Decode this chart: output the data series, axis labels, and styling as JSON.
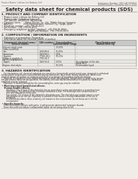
{
  "bg_color": "#f0ede8",
  "header_top_left": "Product Name: Lithium Ion Battery Cell",
  "header_top_right_l1": "Substance Number: SDS-LIB-000010",
  "header_top_right_l2": "Establishment / Revision: Dec.1 2010",
  "main_title": "Safety data sheet for chemical products (SDS)",
  "section1_title": "1. PRODUCT AND COMPANY IDENTIFICATION",
  "section1_lines": [
    " • Product name: Lithium Ion Battery Cell",
    " • Product code: Cylindrical-type cell",
    "    (UR 18650U, UR18650S, UR18650A)",
    " • Company name:      Sanyo Electric Co., Ltd., Mobile Energy Company",
    " • Address:               2001 Kamikamachi, Sumoto-City, Hyogo, Japan",
    " • Telephone number:  +81-799-26-4111",
    " • Fax number:  +81-799-26-4121",
    " • Emergency telephone number (daytime): +81-799-26-3662",
    "                                      (Night and holidays): +81-799-26-4101"
  ],
  "section2_title": "2. COMPOSITION / INFORMATION ON INGREDIENTS",
  "section2_intro": " • Substance or preparation: Preparation",
  "section2_sub": " • Information about the chemical nature of product:",
  "table_headers": [
    "Component chemical name /\nSeveral names",
    "CAS number",
    "Concentration /\nConcentration range",
    "Classification and\nhazard labeling"
  ],
  "table_rows": [
    [
      "Lithium cobalt oxide\n(LiMn:Co)3(PO4)",
      "-",
      "30-40%",
      "-"
    ],
    [
      "Iron",
      "7439-89-6",
      "15-25%",
      "-"
    ],
    [
      "Aluminium",
      "7429-90-5",
      "2-5%",
      "-"
    ],
    [
      "Graphite\n(Flake or graphite-I)\n(AI-90s or graphite-I)",
      "77392-40-5\n7782-44-3",
      "10-20%",
      "-"
    ],
    [
      "Copper",
      "7440-50-8",
      "5-15%",
      "Sensitization of the skin\ngroup No.2"
    ],
    [
      "Organic electrolyte",
      "-",
      "10-20%",
      "Inflammable liquid"
    ]
  ],
  "section3_title": "3. HAZARDS IDENTIFICATION",
  "section3_para": [
    "    For this battery cell, chemical materials are stored in a hermetically sealed metal case, designed to withstand",
    "temperatures or pressures-concentrations during normal use. As a result, during normal use, there is no",
    "physical danger of ignition or explosion and there is no danger of hazardous materials leakage.",
    "    However, if exposed to a fire, added mechanical shock, decomposed, airtight electric wires or by misuse,",
    "the gas release valve can be operated. The battery cell case will be breached at fire patterns. Hazardous",
    "materials may be released.",
    "    Moreover, if heated strongly by the surrounding fire, some gas may be emitted."
  ],
  "section3_effects": " • Most important hazard and effects:",
  "section3_human_title": "    Human health effects:",
  "section3_human_lines": [
    "        Inhalation: The release of the electrolyte has an anaesthesia action and stimulates a respiratory tract.",
    "        Skin contact: The release of the electrolyte stimulates a skin. The electrolyte skin contact causes a",
    "        sore and stimulation on the skin.",
    "        Eye contact: The release of the electrolyte stimulates eyes. The electrolyte eye contact causes a sore",
    "        and stimulation on the eye. Especially, a substance that causes a strong inflammation of the eye is",
    "        contained.",
    "        Environmental effects: Since a battery cell remains in the environment, do not throw out it into the",
    "        environment."
  ],
  "section3_specific": " • Specific hazards:",
  "section3_specific_lines": [
    "    If the electrolyte contacts with water, it will generate detrimental hydrogen fluoride.",
    "    Since the used electrolyte is inflammable liquid, do not bring close to fire."
  ],
  "font_color": "#2a2a2a",
  "header_color": "#666666",
  "line_color": "#999999",
  "table_border_color": "#888888",
  "table_header_bg": "#c8c8c8",
  "table_row_bg1": "#e8e8e4",
  "table_row_bg2": "#f0ede8"
}
